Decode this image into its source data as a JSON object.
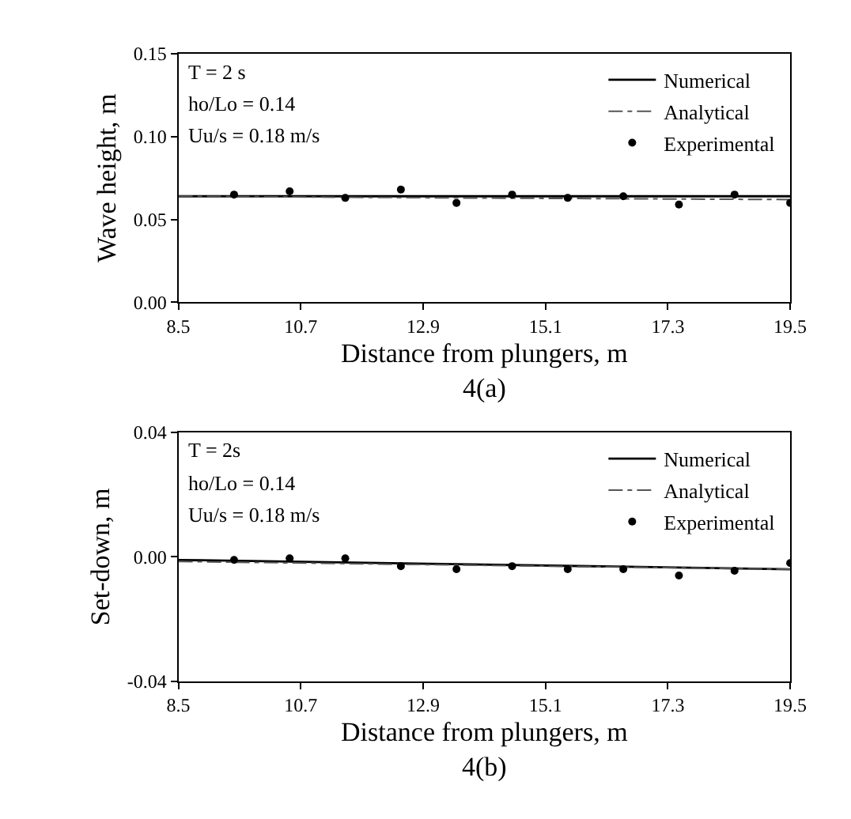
{
  "chart_data": [
    {
      "type": "line",
      "title": "4(a)",
      "xlabel": "Distance from plungers, m",
      "ylabel": "Wave height, m",
      "annotations": [
        "T = 2 s",
        "ho/Lo = 0.14",
        "Uu/s = 0.18 m/s"
      ],
      "xlim": [
        8.5,
        19.5
      ],
      "xticks": [
        8.5,
        10.7,
        12.9,
        15.1,
        17.3,
        19.5
      ],
      "ylim": [
        0,
        0.15
      ],
      "yticks": [
        {
          "value": 0,
          "label": "0.00"
        },
        {
          "value": 0.05,
          "label": "0.05"
        },
        {
          "value": 0.1,
          "label": "0.10"
        },
        {
          "value": 0.15,
          "label": "0.15"
        }
      ],
      "legend": "top right",
      "series": [
        {
          "name": "Numerical",
          "line_style": "solid",
          "color": "#000000",
          "x": [
            8.5,
            19.5
          ],
          "values": [
            0.064,
            0.064
          ]
        },
        {
          "name": "Analytical",
          "line_style": "dashed",
          "color": "#555555",
          "x": [
            8.5,
            13.5,
            19.5
          ],
          "values": [
            0.064,
            0.063,
            0.062
          ]
        },
        {
          "name": "Experimental",
          "type": "scatter",
          "marker": "circle",
          "color": "#000000",
          "x": [
            9.5,
            10.5,
            11.5,
            12.5,
            13.5,
            14.5,
            15.5,
            16.5,
            17.5,
            18.5,
            19.5
          ],
          "values": [
            0.065,
            0.067,
            0.063,
            0.068,
            0.06,
            0.065,
            0.063,
            0.064,
            0.059,
            0.065,
            0.06
          ]
        }
      ]
    },
    {
      "type": "line",
      "title": "4(b)",
      "xlabel": "Distance from plungers, m",
      "ylabel": "Set-down, m",
      "annotations": [
        "T = 2s",
        "ho/Lo = 0.14",
        "Uu/s = 0.18 m/s"
      ],
      "xlim": [
        8.5,
        19.5
      ],
      "xticks": [
        8.5,
        10.7,
        12.9,
        15.1,
        17.3,
        19.5
      ],
      "ylim": [
        -0.04,
        0.04
      ],
      "yticks": [
        {
          "value": -0.04,
          "label": "-0.04"
        },
        {
          "value": 0,
          "label": "0.00"
        },
        {
          "value": 0.04,
          "label": "0.04"
        }
      ],
      "legend": "top right",
      "series": [
        {
          "name": "Numerical",
          "line_style": "solid",
          "color": "#000000",
          "x": [
            8.5,
            19.5
          ],
          "values": [
            -0.001,
            -0.004
          ]
        },
        {
          "name": "Analytical",
          "line_style": "dashed",
          "color": "#555555",
          "x": [
            8.5,
            19.5
          ],
          "values": [
            -0.0015,
            -0.004
          ]
        },
        {
          "name": "Experimental",
          "type": "scatter",
          "marker": "circle",
          "color": "#000000",
          "x": [
            9.5,
            10.5,
            11.5,
            12.5,
            13.5,
            14.5,
            15.5,
            16.5,
            17.5,
            18.5,
            19.5
          ],
          "values": [
            -0.001,
            -0.0005,
            -0.0005,
            -0.003,
            -0.004,
            -0.003,
            -0.004,
            -0.004,
            -0.006,
            -0.0045,
            -0.002
          ]
        }
      ]
    }
  ]
}
